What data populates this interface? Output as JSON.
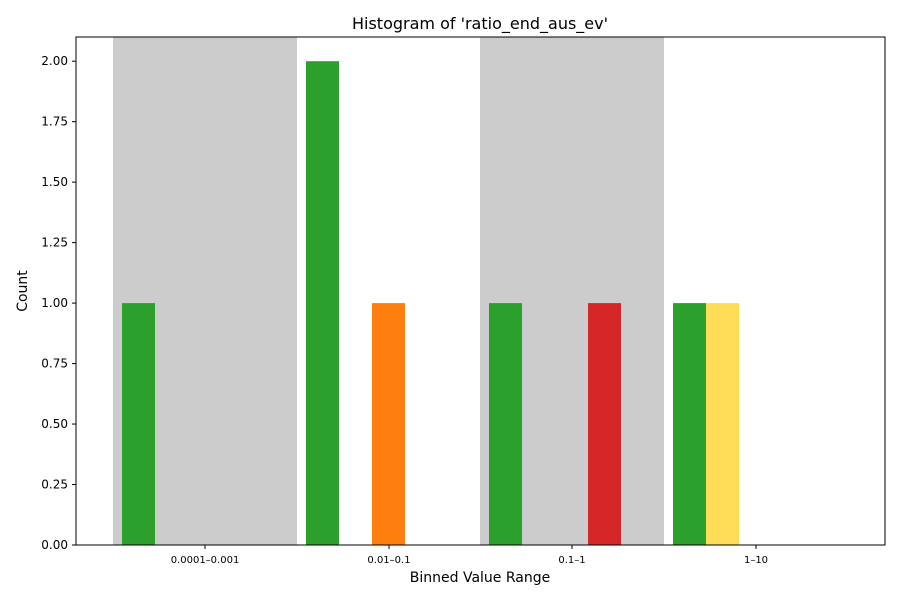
{
  "chart_data": {
    "type": "bar",
    "title": "Histogram of 'ratio_end_aus_ev'",
    "xlabel": "Binned Value Range",
    "ylabel": "Count",
    "categories": [
      "0.0001–0.001",
      "0.01–0.1",
      "0.1–1",
      "1–10"
    ],
    "ylim": [
      0,
      2.1
    ],
    "yticks": [
      "0.00",
      "0.25",
      "0.50",
      "0.75",
      "1.00",
      "1.25",
      "1.50",
      "1.75",
      "2.00"
    ],
    "grid": false,
    "shaded_categories": [
      0,
      2
    ],
    "bars": [
      {
        "category": 0,
        "slot": 0,
        "value": 1,
        "color": "#2ca02c"
      },
      {
        "category": 1,
        "slot": 0,
        "value": 2,
        "color": "#2ca02c"
      },
      {
        "category": 1,
        "slot": 2,
        "value": 1,
        "color": "#ff7f0e"
      },
      {
        "category": 2,
        "slot": 0,
        "value": 1,
        "color": "#2ca02c"
      },
      {
        "category": 2,
        "slot": 3,
        "value": 1,
        "color": "#d62728"
      },
      {
        "category": 3,
        "slot": 0,
        "value": 1,
        "color": "#2ca02c"
      },
      {
        "category": 3,
        "slot": 1,
        "value": 1,
        "color": "#ffdd57"
      }
    ],
    "shade_color": "#cccccc"
  }
}
